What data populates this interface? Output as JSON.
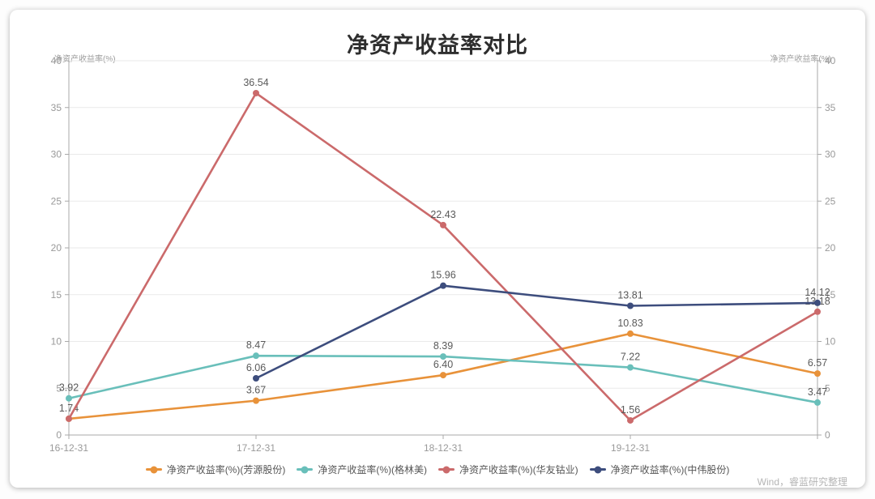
{
  "title": "净资产收益率对比",
  "watermark": "Wind，睿蓝研究整理",
  "chart_data": {
    "type": "line",
    "title": "净资产收益率对比",
    "x_labels": [
      "16-12-31",
      "17-12-31",
      "18-12-31",
      "19-12-31",
      ""
    ],
    "y_axis_title_left": "净资产收益率(%)",
    "y_axis_title_right": "净资产收益率(%)",
    "ylim": [
      0,
      40
    ],
    "yticks": [
      0,
      5,
      10,
      15,
      20,
      25,
      30,
      35,
      40
    ],
    "grid": true,
    "legend_position": "bottom",
    "series": [
      {
        "name": "净资产收益率(%)(芳源股份)",
        "color": "#E8923A",
        "values": [
          1.74,
          3.67,
          6.4,
          10.83,
          6.57
        ],
        "labels": [
          "1.74",
          "3.67",
          "6.40",
          "10.83",
          "6.57"
        ]
      },
      {
        "name": "净资产收益率(%)(格林美)",
        "color": "#69BFBA",
        "values": [
          3.92,
          8.47,
          8.39,
          7.22,
          3.47
        ],
        "labels": [
          "3.92",
          "8.47",
          "8.39",
          "7.22",
          "3.47"
        ]
      },
      {
        "name": "净资产收益率(%)(华友钴业)",
        "color": "#CB6A6B",
        "values": [
          1.74,
          36.54,
          22.43,
          1.56,
          13.18
        ],
        "labels": [
          "",
          "36.54",
          "22.43",
          "1.56",
          "13.18"
        ]
      },
      {
        "name": "净资产收益率(%)(中伟股份)",
        "color": "#3D4D7D",
        "values": [
          null,
          6.06,
          15.96,
          13.81,
          14.12
        ],
        "labels": [
          "",
          "6.06",
          "15.96",
          "13.81",
          "14.12"
        ]
      }
    ]
  }
}
